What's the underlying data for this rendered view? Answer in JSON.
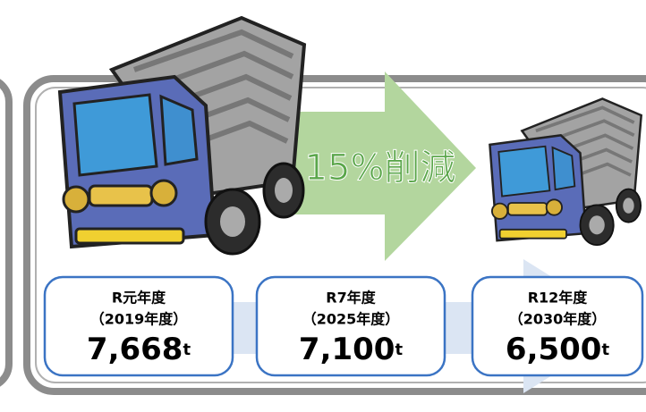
{
  "callout": "15%削減",
  "boxes": [
    {
      "period": "R元年度",
      "year": "（2019年度）",
      "amount": "7,668",
      "unit": "t"
    },
    {
      "period": "R7年度",
      "year": "（2025年度）",
      "amount": "7,100",
      "unit": "t"
    },
    {
      "period": "R12年度",
      "year": "（2030年度）",
      "amount": "6,500",
      "unit": "t"
    }
  ]
}
